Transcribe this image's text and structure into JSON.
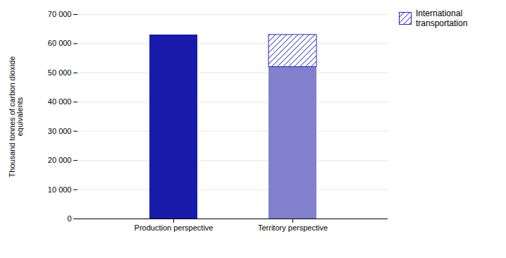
{
  "chart_data": {
    "type": "bar",
    "stacked": true,
    "categories": [
      "Production perspective",
      "Territory perspective"
    ],
    "series": [
      {
        "colors": [
          "#1a1aaa",
          "#8080cc"
        ],
        "values": [
          63000,
          52000
        ]
      },
      {
        "name": "International\ntransportation",
        "color": "#2222bb",
        "values": [
          null,
          11000
        ]
      }
    ],
    "y_label": "Thousand tonnes of carbon dioxide\nequivalents",
    "ylim": [
      0,
      70000
    ],
    "yticks": [
      0,
      {
        "value": 10000,
        "label": "10 000"
      },
      {
        "value": 20000,
        "label": "20 000"
      },
      {
        "value": 30000,
        "label": "30 000"
      },
      {
        "value": 40000,
        "label": "40 000"
      },
      {
        "value": 50000,
        "label": "50 000"
      },
      {
        "value": 60000,
        "label": "60 000"
      },
      {
        "value": 70000,
        "label": "70 000"
      }
    ],
    "grid": true,
    "legend": "upper right"
  }
}
